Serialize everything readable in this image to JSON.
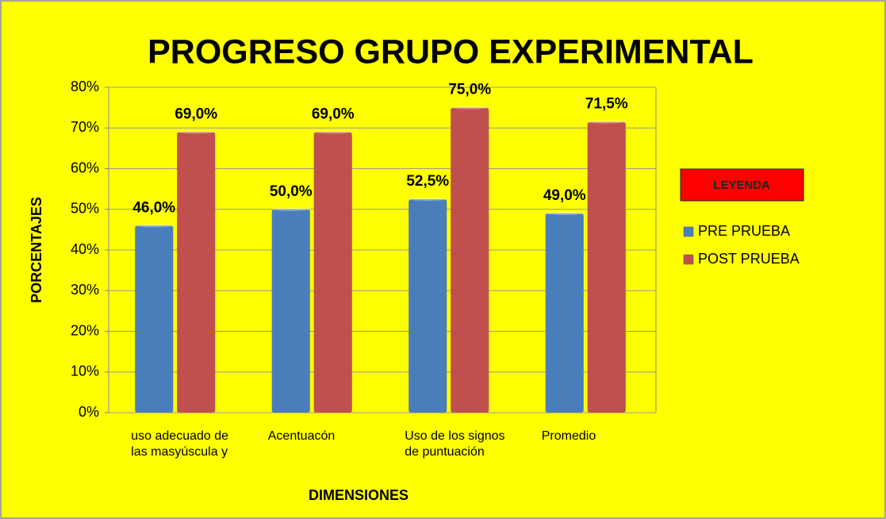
{
  "chart_data": {
    "type": "bar",
    "title": "PROGRESO  GRUPO EXPERIMENTAL",
    "x_label": "DIMENSIONES",
    "y_label": "PORCENTAJES",
    "legend_title": "LEYENDA",
    "categories": [
      "uso adecuado de las masyúscula y",
      "Acentuacón",
      "Uso de los signos de puntuación",
      "Promedio"
    ],
    "series": [
      {
        "name": "PRE PRUEBA",
        "color": "#4a7ebb",
        "values": [
          46,
          50,
          52.5,
          49
        ],
        "value_labels": [
          "46,0%",
          "50,0%",
          "52,5%",
          "49,0%"
        ]
      },
      {
        "name": "POST PRUEBA",
        "color": "#c0504d",
        "values": [
          69,
          69,
          75,
          71.5
        ],
        "value_labels": [
          "69,0%",
          "69,0%",
          "75,0%",
          "71,5%"
        ]
      }
    ],
    "ylim": [
      0,
      80
    ],
    "yticks": [
      {
        "value": 0,
        "label": "0%"
      },
      {
        "value": 10,
        "label": "10%"
      },
      {
        "value": 20,
        "label": "20%"
      },
      {
        "value": 30,
        "label": "30%"
      },
      {
        "value": 40,
        "label": "40%"
      },
      {
        "value": 50,
        "label": "50%"
      },
      {
        "value": 60,
        "label": "60%"
      },
      {
        "value": 70,
        "label": "70%"
      },
      {
        "value": 80,
        "label": "80%"
      }
    ],
    "grid": true,
    "legend": "right",
    "background": "#ffff00"
  }
}
